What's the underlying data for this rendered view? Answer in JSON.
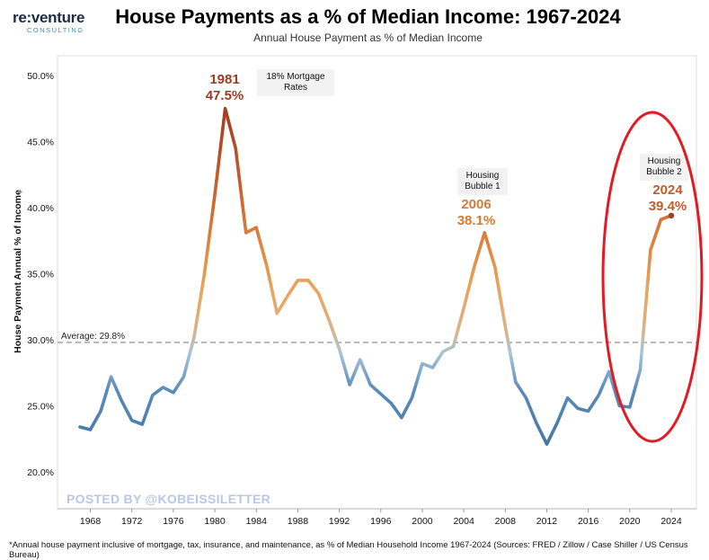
{
  "brand": {
    "name": "re:venture",
    "sub": "CONSULTING"
  },
  "title": "House Payments as a % of Median Income: 1967-2024",
  "subtitle": "Annual House Payment as % of Median Income",
  "watermark": "POSTED BY @KOBEISSILETTER",
  "footnote": "*Annual house payment inclusive of mortgage, tax, insurance, and maintenance, as % of Median Household Income 1967-2024 (Sources: FRED / Zillow / Case Shiller / US Census Bureau)",
  "colors": {
    "line_low": "#3a6d9e",
    "line_mid": "#e9a35a",
    "line_high": "#9c3a22",
    "highlight_ellipse": "#e01b24",
    "average_line": "#9a9a9a"
  },
  "chart_data": {
    "type": "line",
    "title": "House Payments as a % of Median Income: 1967-2024",
    "subtitle": "Annual House Payment as % of Median Income",
    "xlabel": "",
    "ylabel": "House Payment Annual % of Income",
    "ylim": [
      20,
      50
    ],
    "xlim": [
      1966,
      2026
    ],
    "yticks": [
      20,
      25,
      30,
      35,
      40,
      45,
      50
    ],
    "ytick_labels": [
      "20.0%",
      "25.0%",
      "30.0%",
      "35.0%",
      "40.0%",
      "45.0%",
      "50.0%"
    ],
    "xticks": [
      1968,
      1972,
      1976,
      1980,
      1984,
      1988,
      1992,
      1996,
      2000,
      2004,
      2008,
      2012,
      2016,
      2020,
      2024
    ],
    "grid": false,
    "average": {
      "value": 29.8,
      "label": "Average: 29.8%"
    },
    "series": [
      {
        "x": [
          1967,
          1968,
          1969,
          1970,
          1971,
          1972,
          1973,
          1974,
          1975,
          1976,
          1977,
          1978,
          1979,
          1980,
          1981,
          1982,
          1983,
          1984,
          1985,
          1986,
          1987,
          1988,
          1989,
          1990,
          1991,
          1992,
          1993,
          1994,
          1995,
          1996,
          1997,
          1998,
          1999,
          2000,
          2001,
          2002,
          2003,
          2004,
          2005,
          2006,
          2007,
          2008,
          2009,
          2010,
          2011,
          2012,
          2013,
          2014,
          2015,
          2016,
          2017,
          2018,
          2019,
          2020,
          2021,
          2022,
          2023,
          2024
        ],
        "values": [
          23.4,
          23.2,
          24.6,
          27.2,
          25.4,
          23.9,
          23.6,
          25.8,
          26.4,
          26.0,
          27.2,
          30.2,
          35.0,
          41.0,
          47.5,
          44.5,
          38.1,
          38.5,
          35.6,
          32.0,
          33.3,
          34.5,
          34.5,
          33.5,
          31.5,
          29.3,
          26.6,
          28.5,
          26.6,
          25.9,
          25.2,
          24.1,
          25.6,
          28.2,
          27.9,
          29.1,
          29.5,
          32.4,
          35.5,
          38.1,
          35.5,
          31.0,
          26.8,
          25.6,
          23.7,
          22.1,
          23.7,
          25.6,
          24.8,
          24.6,
          25.8,
          27.6,
          25.0,
          24.9,
          27.7,
          36.8,
          39.1,
          39.4
        ]
      }
    ],
    "annotations": [
      {
        "year": "1981",
        "value": "47.5%"
      },
      {
        "year": "2006",
        "value": "38.1%"
      },
      {
        "year": "2024",
        "value": "39.4%"
      }
    ],
    "notes": [
      "18% Mortgage Rates",
      "Housing Bubble 1",
      "Housing Bubble 2"
    ]
  }
}
